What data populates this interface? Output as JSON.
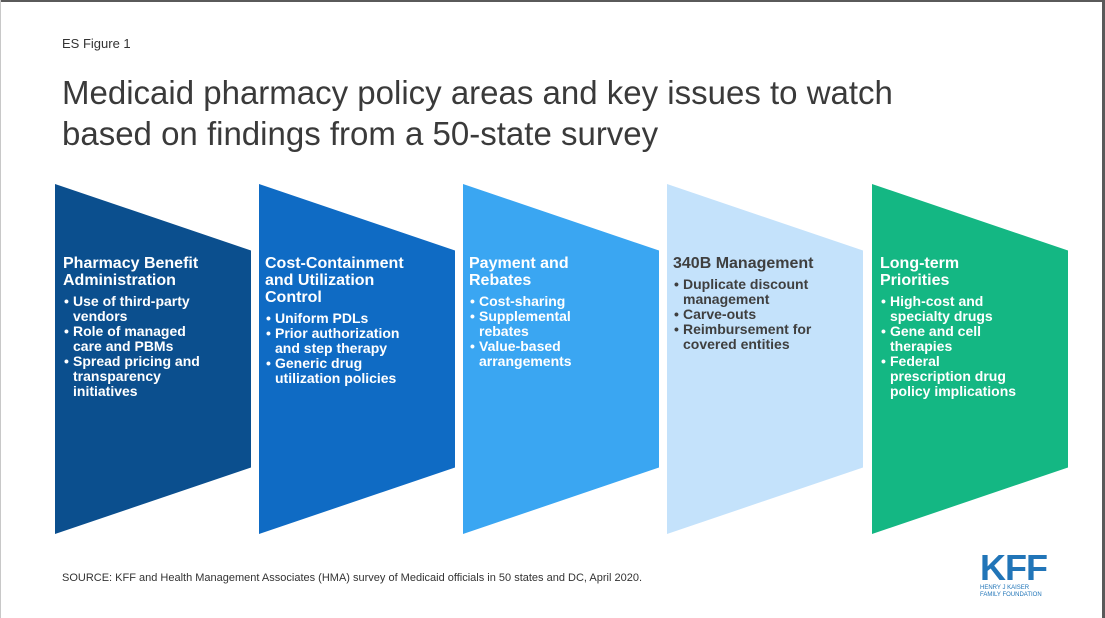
{
  "figure_label": "ES Figure 1",
  "title_lines": [
    "Medicaid pharmacy policy areas and key issues to watch",
    "based on findings from a 50-state survey"
  ],
  "areas": [
    {
      "title_lines": [
        "Pharmacy Benefit",
        "Administration"
      ],
      "color": "#0b4f8e",
      "items": [
        [
          "Use of third-party",
          "vendors"
        ],
        [
          "Role of managed",
          "care and PBMs"
        ],
        [
          "Spread pricing and",
          "transparency",
          "initiatives"
        ]
      ]
    },
    {
      "title_lines": [
        "Cost-Containment",
        "and Utilization",
        "Control"
      ],
      "color": "#0f6bc4",
      "items": [
        [
          "Uniform PDLs"
        ],
        [
          "Prior authorization",
          "and step therapy"
        ],
        [
          "Generic drug",
          "utilization policies"
        ]
      ]
    },
    {
      "title_lines": [
        "Payment and",
        "Rebates"
      ],
      "color": "#3aa6f2",
      "items": [
        [
          "Cost-sharing"
        ],
        [
          "Supplemental",
          "rebates"
        ],
        [
          "Value-based",
          "arrangements"
        ]
      ]
    },
    {
      "title_lines": [
        "340B Management"
      ],
      "color": "#c4e2fb",
      "items": [
        [
          "Duplicate discount",
          "management"
        ],
        [
          "Carve-outs"
        ],
        [
          "Reimbursement for",
          "covered entities"
        ]
      ]
    },
    {
      "title_lines": [
        "Long-term",
        "Priorities"
      ],
      "color": "#14b783",
      "items": [
        [
          "High-cost and",
          "specialty drugs"
        ],
        [
          "Gene and cell",
          "therapies"
        ],
        [
          "Federal",
          "prescription drug",
          "policy implications"
        ]
      ]
    }
  ],
  "source": "SOURCE: KFF and Health Management Associates (HMA) survey of Medicaid officials in 50 states and DC, April 2020.",
  "logo": {
    "mark": "KFF",
    "sub_lines": [
      "HENRY J KAISER",
      "FAMILY FOUNDATION"
    ]
  }
}
